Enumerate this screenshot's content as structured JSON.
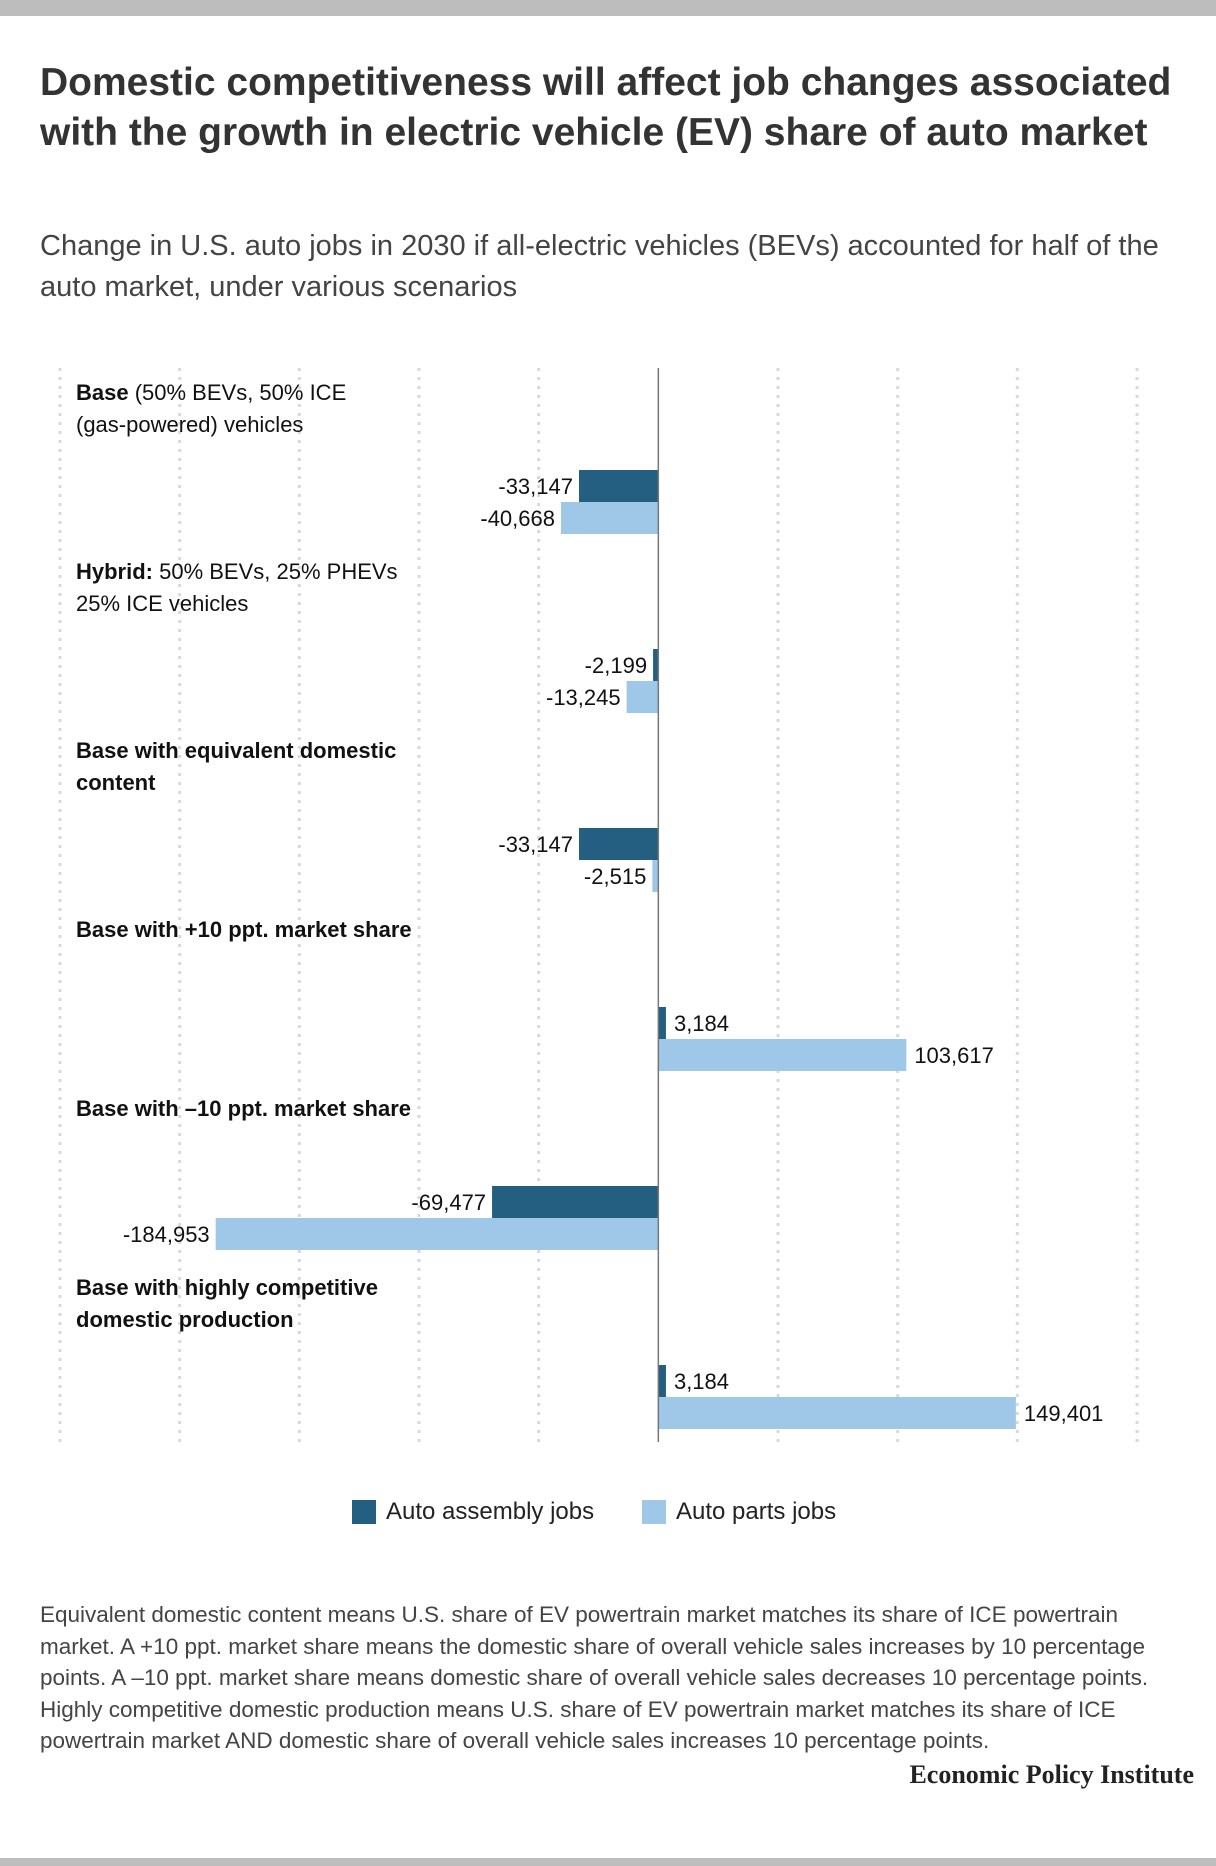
{
  "title": "Domestic competitiveness will affect job changes associated with the growth in electric vehicle (EV) share of auto market",
  "subtitle": "Change in U.S. auto jobs in 2030 if all-electric vehicles (BEVs) accounted for half of the auto market, under various scenarios",
  "legend": {
    "assembly": "Auto assembly jobs",
    "parts": "Auto parts jobs"
  },
  "footnote": "Equivalent domestic content means U.S. share of EV powertrain market matches its share of ICE powertrain market. A +10 ppt. market share means the domestic share of overall vehicle sales increases by 10 percentage points. A –10 ppt. market share means domestic share of overall vehicle sales decreases 10 percentage points. Highly competitive domestic production means U.S. share of EV powertrain market matches its share of ICE powertrain market AND domestic share of overall vehicle sales increases 10 percentage points.",
  "brand": "Economic Policy Institute",
  "colors": {
    "assembly": "#245e80",
    "parts": "#9fc7e8",
    "grid": "#d9d9d9",
    "zero": "#777777"
  },
  "chart_data": {
    "type": "bar",
    "orientation": "horizontal",
    "xlim": [
      -250000,
      200000
    ],
    "grid": true,
    "legend_position": "bottom",
    "categories": [
      {
        "bold": "Base",
        "rest": " (50% BEVs, 50% ICE",
        "line2": "(gas-powered) vehicles"
      },
      {
        "bold": "Hybrid:",
        "rest": " 50% BEVs, 25% PHEVs",
        "line2": "25% ICE vehicles"
      },
      {
        "bold": "Base with equivalent domestic",
        "rest": "",
        "line2": "content",
        "line2_bold": true
      },
      {
        "bold": "Base with +10 ppt. market share",
        "rest": "",
        "line2": ""
      },
      {
        "bold": "Base with –10 ppt. market share",
        "rest": "",
        "line2": ""
      },
      {
        "bold": "Base with highly competitive",
        "rest": "",
        "line2": "domestic production",
        "line2_bold": true
      }
    ],
    "series": [
      {
        "name": "Auto assembly jobs",
        "values": [
          -33147,
          -2199,
          -33147,
          3184,
          -69477,
          3184
        ],
        "labels": [
          "-33,147",
          "-2,199",
          "-33,147",
          "3,184",
          "-69,477",
          "3,184"
        ]
      },
      {
        "name": "Auto parts jobs",
        "values": [
          -40668,
          -13245,
          -2515,
          103617,
          -184953,
          149401
        ],
        "labels": [
          "-40,668",
          "-13,245",
          "-2,515",
          "103,617",
          "-184,953",
          "149,401"
        ]
      }
    ]
  }
}
